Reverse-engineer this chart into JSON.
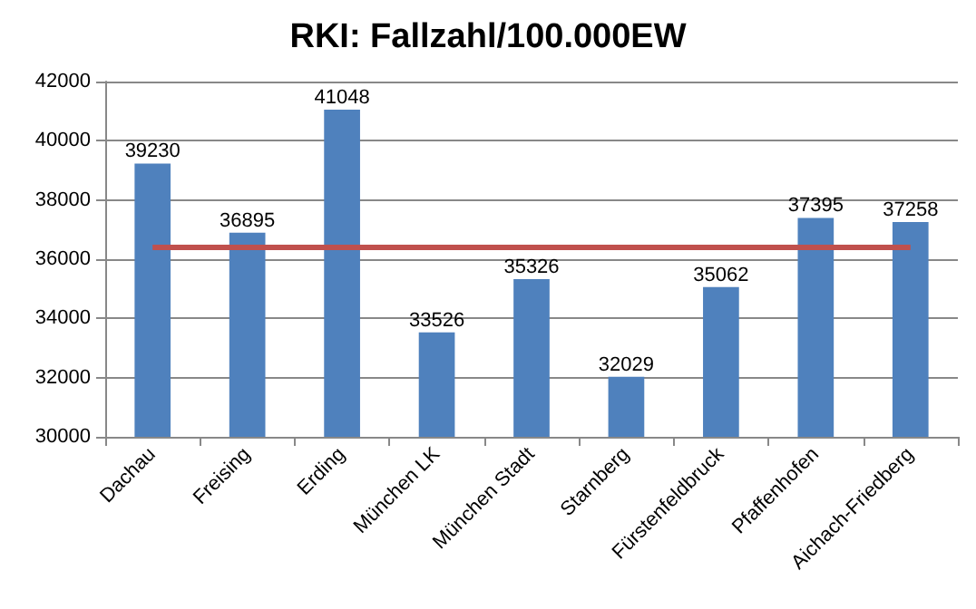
{
  "chart_data": {
    "type": "bar",
    "title": "RKI: Fallzahl/100.000EW",
    "categories": [
      "Dachau",
      "Freising",
      "Erding",
      "München LK",
      "München Stadt",
      "Starnberg",
      "Fürstenfeldbruck",
      "Pfaffenhofen",
      "Aichach-Friedberg"
    ],
    "series": [
      {
        "color": "#4f81bd",
        "values": [
          39230,
          36895,
          41048,
          33526,
          35326,
          32029,
          35062,
          37395,
          37258
        ],
        "data_labels": true
      },
      {
        "type": "line",
        "color": "#c0504d",
        "marker": "none",
        "line_style": "solid",
        "values": [
          36400,
          36400,
          36400,
          36400,
          36400,
          36400,
          36400,
          36400,
          36400
        ]
      }
    ],
    "ylim": [
      30000,
      42000
    ],
    "yticks": [
      30000,
      32000,
      34000,
      36000,
      38000,
      40000,
      42000
    ],
    "grid": "y"
  }
}
